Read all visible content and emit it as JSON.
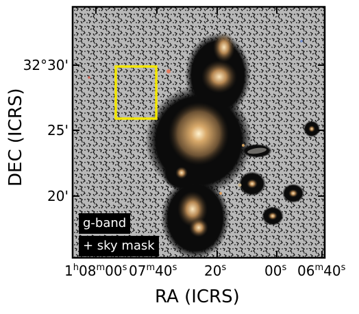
{
  "figure": {
    "xlabel": "RA (ICRS)",
    "ylabel": "DEC (ICRS)",
    "y_ticks": [
      "32°30'",
      "25'",
      "20'"
    ],
    "x_ticks": [
      {
        "main": "1",
        "sup1": "h",
        "mid": "08",
        "sup2": "m",
        "tail": "00",
        "sup3": "s"
      },
      {
        "main": "07",
        "sup1": "m",
        "mid": "40",
        "sup2": "s"
      },
      {
        "main": "20",
        "sup1": "s"
      },
      {
        "main": "00",
        "sup1": "s"
      },
      {
        "main": "06",
        "sup1": "m",
        "mid": "40",
        "sup2": "s"
      }
    ],
    "legend_line1": "g-band",
    "legend_line2": "+ sky mask",
    "colors": {
      "background_sky": "#bdbdbd",
      "mask": "#111111",
      "highlight_box": "#f2e600",
      "galaxy_core": "#f5d9a8",
      "galaxy_halo": "#8a6a44"
    }
  }
}
